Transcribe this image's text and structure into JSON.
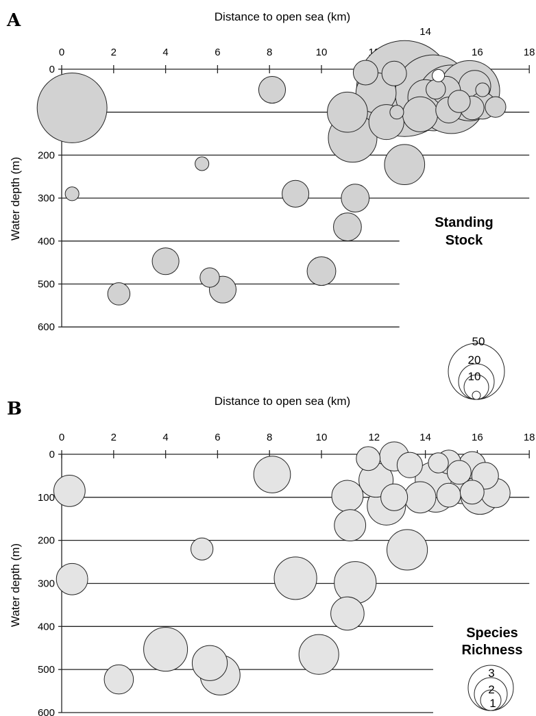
{
  "chart_data": [
    {
      "type": "scatter",
      "panel_label": "A",
      "xlabel": "Distance to open sea (km)",
      "ylabel": "Water depth (m)",
      "xlim": [
        0,
        18
      ],
      "ylim": [
        0,
        600
      ],
      "x_ticks": [
        0,
        2,
        4,
        6,
        8,
        10,
        12,
        14,
        16,
        18
      ],
      "y_ticks": [
        0,
        100,
        200,
        300,
        400,
        500,
        600
      ],
      "legend": {
        "title_lines": [
          "Standing",
          "Stock"
        ],
        "levels": [
          {
            "label": "50",
            "value": 50
          },
          {
            "label": "20",
            "value": 20
          },
          {
            "label": "10",
            "value": 10
          },
          {
            "label": "",
            "value": 1
          }
        ],
        "placement": "right"
      },
      "bubble_fill": "#d2d2d2",
      "zero_fill": "#ffffff",
      "points": [
        {
          "x": 13.2,
          "y": 45,
          "size": 50
        },
        {
          "x": 0.4,
          "y": 90,
          "size": 25
        },
        {
          "x": 14.3,
          "y": 55,
          "size": 30
        },
        {
          "x": 15.0,
          "y": 70,
          "size": 24
        },
        {
          "x": 15.7,
          "y": 50,
          "size": 18
        },
        {
          "x": 11.2,
          "y": 160,
          "size": 11
        },
        {
          "x": 12.1,
          "y": 55,
          "size": 7
        },
        {
          "x": 13.2,
          "y": 222,
          "size": 7
        },
        {
          "x": 14.0,
          "y": 65,
          "size": 5
        },
        {
          "x": 11.0,
          "y": 100,
          "size": 7
        },
        {
          "x": 12.5,
          "y": 123,
          "size": 5
        },
        {
          "x": 13.8,
          "y": 105,
          "size": 5
        },
        {
          "x": 15.9,
          "y": 40,
          "size": 4
        },
        {
          "x": 14.8,
          "y": 50,
          "size": 3
        },
        {
          "x": 16.2,
          "y": 85,
          "size": 2.5
        },
        {
          "x": 14.9,
          "y": 95,
          "size": 2.3
        },
        {
          "x": 10.0,
          "y": 470,
          "size": 3
        },
        {
          "x": 6.2,
          "y": 513,
          "size": 2.5
        },
        {
          "x": 4.0,
          "y": 447,
          "size": 2.5
        },
        {
          "x": 9.0,
          "y": 290,
          "size": 2.5
        },
        {
          "x": 11.3,
          "y": 300,
          "size": 2.8
        },
        {
          "x": 11.0,
          "y": 367,
          "size": 2.8
        },
        {
          "x": 8.1,
          "y": 48,
          "size": 2.5
        },
        {
          "x": 15.3,
          "y": 75,
          "size": 1.5
        },
        {
          "x": 15.8,
          "y": 90,
          "size": 1.8
        },
        {
          "x": 16.7,
          "y": 88,
          "size": 1.2
        },
        {
          "x": 11.7,
          "y": 8,
          "size": 2
        },
        {
          "x": 12.8,
          "y": 10,
          "size": 2
        },
        {
          "x": 2.2,
          "y": 523,
          "size": 1.5
        },
        {
          "x": 5.7,
          "y": 485,
          "size": 1
        },
        {
          "x": 14.4,
          "y": 47,
          "size": 1
        },
        {
          "x": 5.4,
          "y": 220,
          "size": 0.3
        },
        {
          "x": 0.4,
          "y": 290,
          "size": 0.3
        },
        {
          "x": 12.9,
          "y": 100,
          "size": 0.3
        },
        {
          "x": 16.2,
          "y": 48,
          "size": 0.3
        },
        {
          "x": 14.5,
          "y": 15,
          "size": 0
        }
      ]
    },
    {
      "type": "scatter",
      "panel_label": "B",
      "xlabel": "Distance to open sea (km)",
      "ylabel": "Water depth (m)",
      "xlim": [
        0,
        18
      ],
      "ylim": [
        0,
        600
      ],
      "x_ticks": [
        0,
        2,
        4,
        6,
        8,
        10,
        12,
        14,
        16,
        18
      ],
      "y_ticks": [
        0,
        100,
        200,
        300,
        400,
        500,
        600
      ],
      "legend": {
        "title_lines": [
          "Species",
          "Richness"
        ],
        "levels": [
          {
            "label": "3",
            "value": 3
          },
          {
            "label": "2",
            "value": 2
          },
          {
            "label": "1",
            "value": 1
          }
        ],
        "placement": "right"
      },
      "bubble_fill": "#e4e4e4",
      "zero_fill": "#ffffff",
      "points": [
        {
          "x": 0.3,
          "y": 85,
          "size": 1
        },
        {
          "x": 0.4,
          "y": 290,
          "size": 1
        },
        {
          "x": 2.2,
          "y": 523,
          "size": 0.8
        },
        {
          "x": 4.0,
          "y": 453,
          "size": 2.6
        },
        {
          "x": 5.4,
          "y": 220,
          "size": 0.3
        },
        {
          "x": 5.7,
          "y": 485,
          "size": 1.4
        },
        {
          "x": 6.1,
          "y": 513,
          "size": 2
        },
        {
          "x": 8.1,
          "y": 47,
          "size": 1.6
        },
        {
          "x": 9.0,
          "y": 288,
          "size": 2.4
        },
        {
          "x": 9.9,
          "y": 465,
          "size": 2
        },
        {
          "x": 11.0,
          "y": 97,
          "size": 1
        },
        {
          "x": 11.1,
          "y": 165,
          "size": 1
        },
        {
          "x": 11.3,
          "y": 298,
          "size": 2.3
        },
        {
          "x": 11.0,
          "y": 370,
          "size": 1.2
        },
        {
          "x": 11.8,
          "y": 10,
          "size": 0.4
        },
        {
          "x": 12.1,
          "y": 60,
          "size": 1.3
        },
        {
          "x": 12.5,
          "y": 120,
          "size": 1.8
        },
        {
          "x": 12.8,
          "y": 5,
          "size": 0.8
        },
        {
          "x": 12.8,
          "y": 100,
          "size": 0.6
        },
        {
          "x": 13.3,
          "y": 222,
          "size": 2.1
        },
        {
          "x": 13.4,
          "y": 25,
          "size": 0.5
        },
        {
          "x": 13.8,
          "y": 100,
          "size": 1
        },
        {
          "x": 14.3,
          "y": 60,
          "size": 1.5
        },
        {
          "x": 14.4,
          "y": 90,
          "size": 1.8
        },
        {
          "x": 14.5,
          "y": 20,
          "size": 0.2
        },
        {
          "x": 14.9,
          "y": 18,
          "size": 0.4
        },
        {
          "x": 14.9,
          "y": 95,
          "size": 0.4
        },
        {
          "x": 15.3,
          "y": 42,
          "size": 0.4
        },
        {
          "x": 15.4,
          "y": 70,
          "size": 1.8
        },
        {
          "x": 15.8,
          "y": 25,
          "size": 0.6
        },
        {
          "x": 15.8,
          "y": 88,
          "size": 0.4
        },
        {
          "x": 16.1,
          "y": 95,
          "size": 1.8
        },
        {
          "x": 16.3,
          "y": 50,
          "size": 0.6
        },
        {
          "x": 16.7,
          "y": 90,
          "size": 0.8
        }
      ]
    }
  ]
}
